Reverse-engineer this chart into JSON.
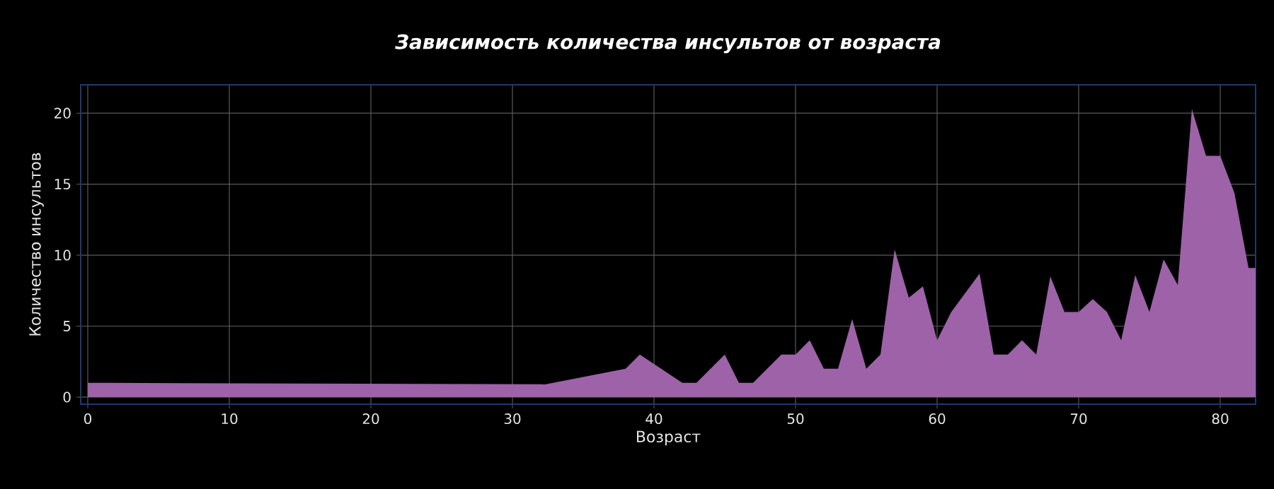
{
  "chart_data": {
    "type": "area",
    "title": "Зависимость количества инсультов от возраста",
    "xlabel": "Возраст",
    "ylabel": "Количество инсультов",
    "series": [
      {
        "color": "#9d62a8",
        "x": [
          0,
          1.3,
          32.3,
          38,
          39,
          42,
          43,
          45,
          46,
          47,
          49,
          50,
          51,
          52,
          53,
          54,
          55,
          56,
          57,
          58,
          59,
          60,
          61,
          63,
          64,
          65,
          66,
          67,
          68,
          69,
          70,
          71,
          72,
          73,
          74,
          75,
          76,
          77,
          78,
          79,
          80,
          81,
          82,
          82.5
        ],
        "values": [
          1,
          1,
          0.9,
          2,
          3,
          1,
          1,
          3,
          1,
          1,
          3,
          3,
          4,
          2,
          2,
          5.5,
          2,
          3,
          10.4,
          7,
          7.8,
          4,
          6,
          8.7,
          3,
          3,
          4,
          3,
          8.5,
          6,
          6,
          6.9,
          6,
          4,
          8.6,
          6,
          9.7,
          7.9,
          20.3,
          17,
          17,
          14.4,
          9.1,
          9.1
        ]
      }
    ],
    "xlim": [
      -0.5,
      82.5
    ],
    "ylim": [
      -0.5,
      22
    ],
    "xticks": [
      0,
      10,
      20,
      30,
      40,
      50,
      60,
      70,
      80
    ],
    "yticks": [
      0,
      5,
      10,
      15,
      20
    ],
    "grid": true,
    "marker": "none"
  }
}
